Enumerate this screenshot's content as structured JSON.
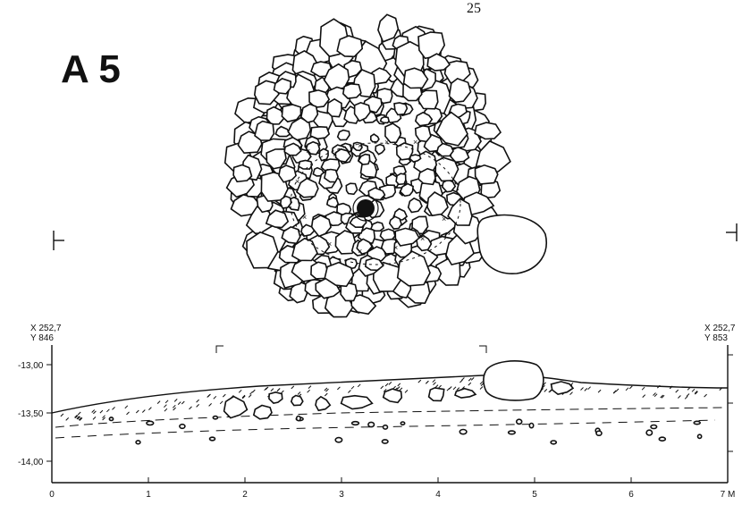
{
  "page_number": "25",
  "plan_label": "A 5",
  "section": {
    "left_coord": {
      "x": "X 252,7",
      "y": "Y 846"
    },
    "right_coord": {
      "x": "X 252,7",
      "y": "Y 853"
    },
    "y_ticks": [
      "-13,00",
      "-13,50",
      "-14,00"
    ],
    "x_ticks": [
      "0",
      "1",
      "2",
      "3",
      "4",
      "5",
      "6",
      "7 M"
    ]
  }
}
